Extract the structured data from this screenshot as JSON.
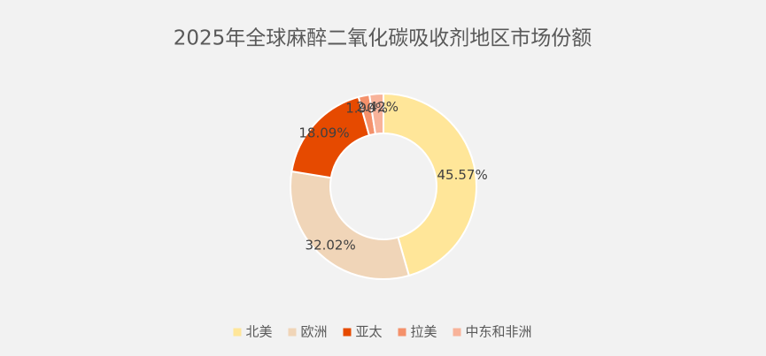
{
  "chart_data": {
    "type": "donut",
    "title": "2025年全球麻醉二氧化碳吸收剂地区市场份额",
    "categories": [
      "北美",
      "欧洲",
      "亚太",
      "拉美",
      "中东和非洲"
    ],
    "values": [
      45.57,
      32.02,
      18.09,
      1.9,
      2.42
    ],
    "value_labels": [
      "45.57%",
      "32.02%",
      "18.09%",
      "1.90%",
      "2.42%"
    ],
    "colors": [
      "#ffe699",
      "#f0d5b8",
      "#e64a00",
      "#f4916b",
      "#f8b39a"
    ],
    "legend": "bottom"
  }
}
